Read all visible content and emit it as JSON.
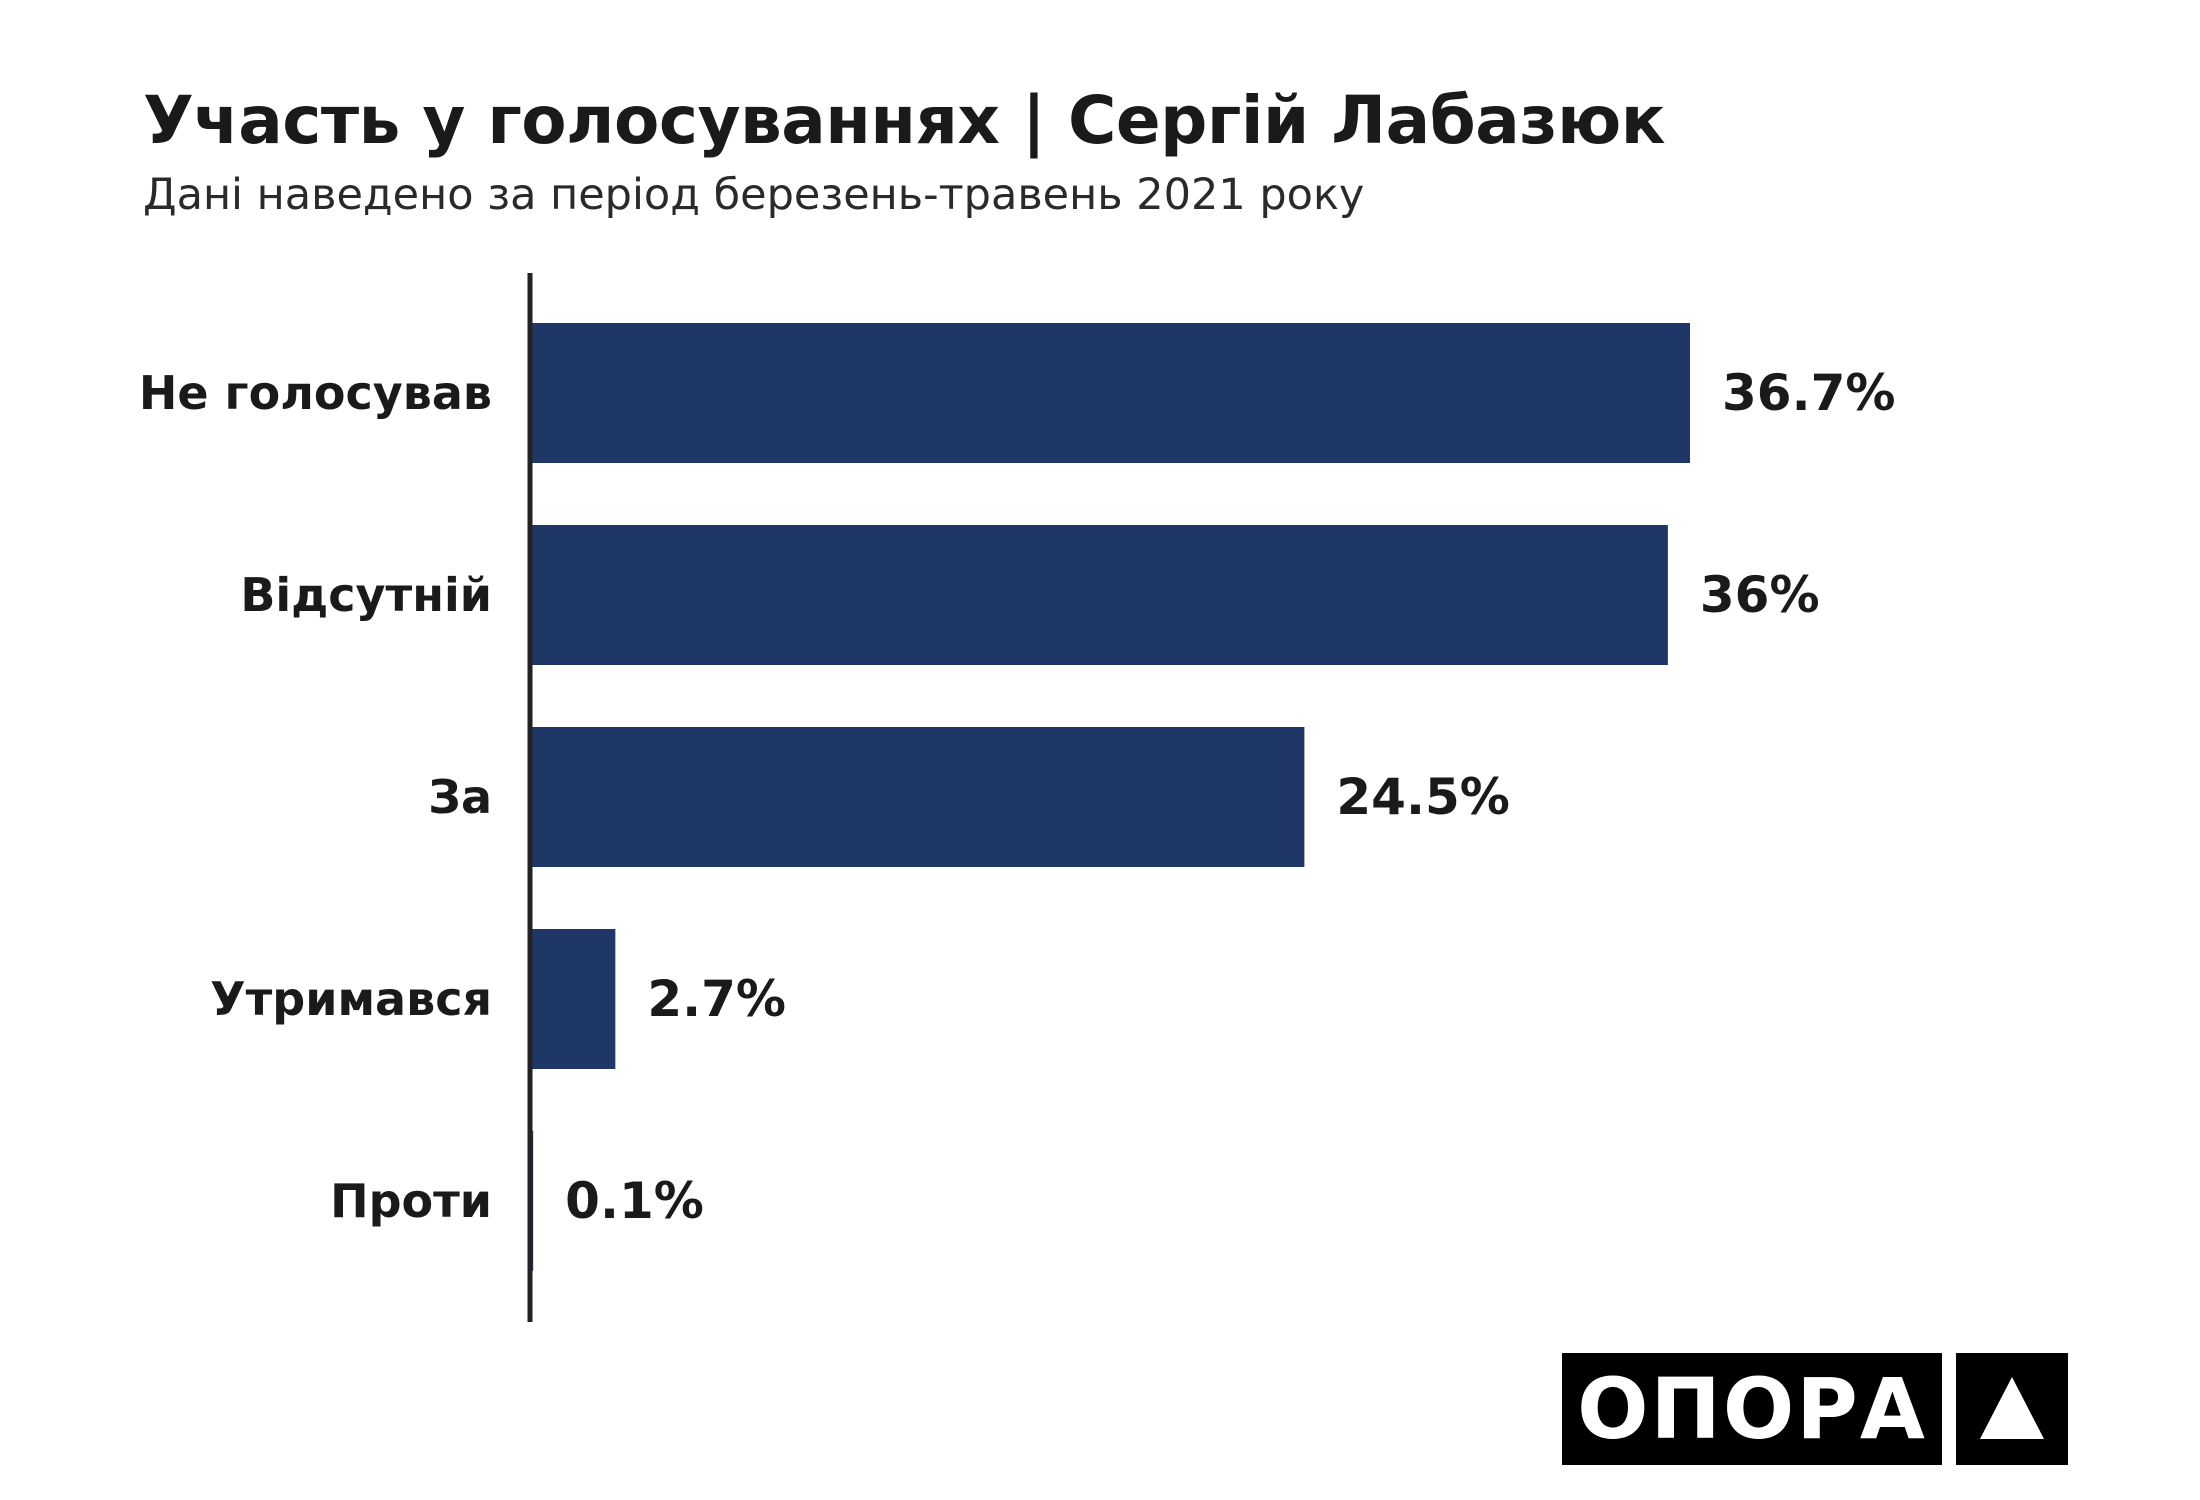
{
  "chart_data": {
    "type": "bar",
    "orientation": "horizontal",
    "title": "Участь у голосуваннях | Сергій Лабазюк",
    "subtitle": "Дані наведено за період березень-травень 2021 року",
    "categories": [
      "Не голосував",
      "Відсутній",
      "За",
      "Утримався",
      "Проти"
    ],
    "values": [
      36.7,
      36,
      24.5,
      2.7,
      0.1
    ],
    "value_labels": [
      "36.7%",
      "36%",
      "24.5%",
      "2.7%",
      "0.1%"
    ],
    "unit": "%",
    "xlim": [
      0,
      36.7
    ],
    "grid": false,
    "legend": "none",
    "bar_color": "#1f3766"
  },
  "logo": {
    "text": "ОПОРА",
    "icon": "triangle-icon"
  }
}
